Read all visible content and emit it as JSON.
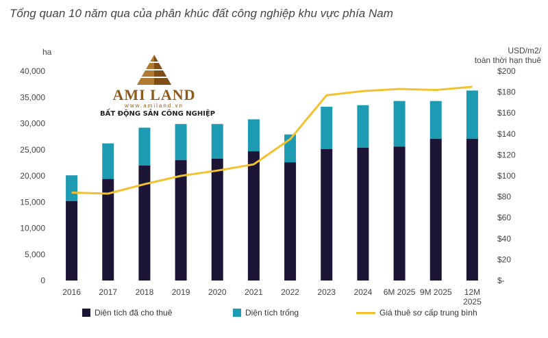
{
  "title": "Tổng quan 10 năm qua của phân khúc đất công nghiệp khu vực phía Nam",
  "logo": {
    "name": "AMI LAND",
    "url": "www.amiland.vn",
    "tagline": "BẤT ĐỘNG SẢN CÔNG NGHIỆP"
  },
  "chart_data": {
    "type": "bar",
    "stacked": true,
    "categories": [
      "2016",
      "2017",
      "2018",
      "2019",
      "2020",
      "2021",
      "2022",
      "2023",
      "2024",
      "6M 2025",
      "9M 2025",
      "12M 2025"
    ],
    "series": [
      {
        "name": "Diện tích đã cho thuê",
        "type": "bar",
        "axis": "left",
        "color": "#1c1535",
        "values": [
          15200,
          19400,
          22000,
          23000,
          23300,
          24700,
          22600,
          25100,
          25400,
          25600,
          27100,
          27100
        ]
      },
      {
        "name": "Diện tích trống",
        "type": "bar",
        "axis": "left",
        "color": "#1d9bb3",
        "values": [
          4900,
          6800,
          7200,
          6900,
          6600,
          6100,
          5300,
          8100,
          8100,
          8700,
          7200,
          9200
        ]
      },
      {
        "name": "Giá thuê sơ cấp trung bình",
        "type": "line",
        "axis": "right",
        "color": "#f2c12e",
        "values": [
          84,
          83,
          92,
          100,
          105,
          111,
          135,
          177,
          181,
          183,
          182,
          185
        ]
      }
    ],
    "left_axis": {
      "unit": "ha",
      "ylim": [
        0,
        40000
      ],
      "ticks": [
        "0",
        "5,000",
        "10,000",
        "15,000",
        "20,000",
        "25,000",
        "30,000",
        "35,000",
        "40,000"
      ]
    },
    "right_axis": {
      "unit_line1": "USD/m2/",
      "unit_line2": "toàn thời hạn thuê",
      "ylim": [
        0,
        200
      ],
      "ticks": [
        "$-",
        "$20",
        "$40",
        "$60",
        "$80",
        "$100",
        "$120",
        "$140",
        "$160",
        "$180",
        "$200"
      ]
    },
    "grid": false,
    "legend_position": "bottom"
  }
}
